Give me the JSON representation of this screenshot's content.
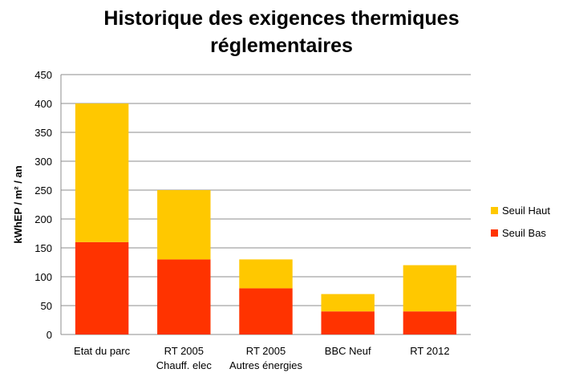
{
  "chart_data": {
    "type": "bar",
    "stacked": true,
    "title": [
      "Historique des exigences thermiques",
      "réglementaires"
    ],
    "ylabel": "kWhEP / m² / an",
    "xlabel": "",
    "ylim": [
      0,
      450
    ],
    "yticks": [
      0,
      50,
      100,
      150,
      200,
      250,
      300,
      350,
      400,
      450
    ],
    "grid": true,
    "legend_position": "right",
    "categories": [
      [
        "Etat du parc"
      ],
      [
        "RT 2005",
        "Chauff. elec"
      ],
      [
        "RT 2005",
        "Autres énergies"
      ],
      [
        "BBC Neuf"
      ],
      [
        "RT 2012"
      ]
    ],
    "series": [
      {
        "name": "Seuil Bas",
        "color": "#ff3300",
        "values": [
          160,
          130,
          80,
          40,
          40
        ]
      },
      {
        "name": "Seuil Haut",
        "color": "#ffc800",
        "values": [
          240,
          120,
          50,
          30,
          80
        ]
      }
    ],
    "legend_order": [
      "Seuil Haut",
      "Seuil Bas"
    ]
  }
}
